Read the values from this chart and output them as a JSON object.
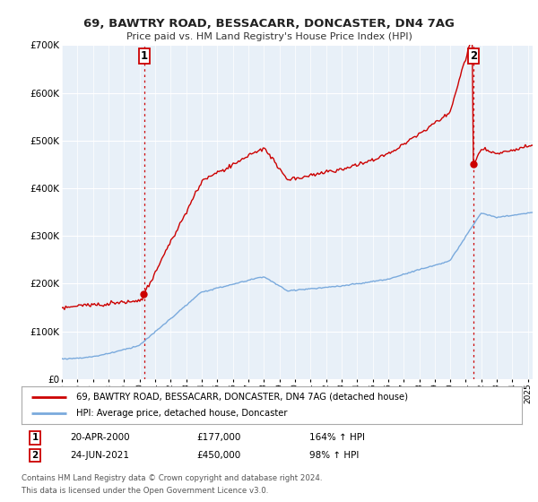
{
  "title": "69, BAWTRY ROAD, BESSACARR, DONCASTER, DN4 7AG",
  "subtitle": "Price paid vs. HM Land Registry's House Price Index (HPI)",
  "ylim": [
    0,
    700000
  ],
  "yticks": [
    0,
    100000,
    200000,
    300000,
    400000,
    500000,
    600000,
    700000
  ],
  "ytick_labels": [
    "£0",
    "£100K",
    "£200K",
    "£300K",
    "£400K",
    "£500K",
    "£600K",
    "£700K"
  ],
  "xlim_start": 1995,
  "xlim_end": 2025.3,
  "sale1_date": 2000.3,
  "sale1_price": 177000,
  "sale2_date": 2021.48,
  "sale2_price": 450000,
  "property_color": "#cc0000",
  "hpi_color": "#7aaadd",
  "chart_bg": "#e8f0f8",
  "legend1": "69, BAWTRY ROAD, BESSACARR, DONCASTER, DN4 7AG (detached house)",
  "legend2": "HPI: Average price, detached house, Doncaster",
  "footnote1": "Contains HM Land Registry data © Crown copyright and database right 2024.",
  "footnote2": "This data is licensed under the Open Government Licence v3.0.",
  "background_color": "#ffffff"
}
